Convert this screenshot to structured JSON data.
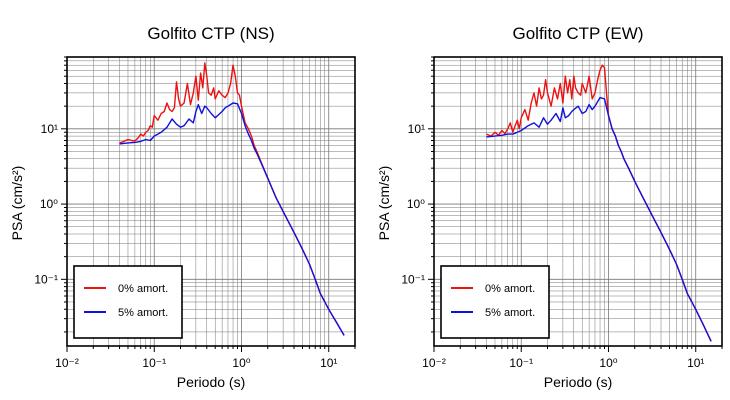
{
  "colors": {
    "zero_damping": "#ee1111",
    "five_damping": "#1111dd",
    "frame": "#000000",
    "grid": "#777777"
  },
  "chart_data": [
    {
      "type": "line",
      "title": "Golfito CTP (NS)",
      "xlabel": "Periodo (s)",
      "ylabel": "PSA (cm/s²)",
      "xscale": "log",
      "yscale": "log",
      "xlim": [
        0.01,
        20
      ],
      "ylim": [
        0.013,
        90
      ],
      "xtick_labels": [
        "10⁻²",
        "10⁻¹",
        "10⁰",
        "10¹"
      ],
      "ytick_labels": [
        "10⁻¹",
        "10⁰",
        "10¹"
      ],
      "grid": true,
      "legend_position": "lower-left",
      "series": [
        {
          "name": "0% amort.",
          "color": "#ee1111",
          "x": [
            0.04,
            0.045,
            0.05,
            0.055,
            0.06,
            0.065,
            0.07,
            0.075,
            0.08,
            0.085,
            0.09,
            0.095,
            0.1,
            0.11,
            0.12,
            0.13,
            0.14,
            0.15,
            0.16,
            0.17,
            0.18,
            0.19,
            0.2,
            0.22,
            0.24,
            0.26,
            0.28,
            0.3,
            0.32,
            0.34,
            0.36,
            0.38,
            0.4,
            0.42,
            0.45,
            0.48,
            0.5,
            0.55,
            0.6,
            0.65,
            0.7,
            0.75,
            0.8,
            0.85,
            0.9,
            0.95,
            1.0,
            1.1,
            1.2,
            1.3,
            1.4,
            1.5,
            1.7,
            2.0,
            2.5,
            3.0,
            4.0,
            5.0,
            6.0,
            7.0,
            8.0,
            10.0,
            12.0,
            15.0
          ],
          "y": [
            6.5,
            6.8,
            7.2,
            7.0,
            6.9,
            7.5,
            8.5,
            8.0,
            9.0,
            9.5,
            11.0,
            10.5,
            15.0,
            13.0,
            16.0,
            17.0,
            22.0,
            18.0,
            17.0,
            19.0,
            42.0,
            25.0,
            20.0,
            22.0,
            40.0,
            21.0,
            30.0,
            50.0,
            24.0,
            55.0,
            35.0,
            75.0,
            50.0,
            30.0,
            28.0,
            35.0,
            25.0,
            32.0,
            28.0,
            26.0,
            30.0,
            40.0,
            70.0,
            50.0,
            30.0,
            28.0,
            20.0,
            12.0,
            10.0,
            8.0,
            6.0,
            5.0,
            3.5,
            2.2,
            1.2,
            0.8,
            0.42,
            0.25,
            0.16,
            0.1,
            0.065,
            0.04,
            0.028,
            0.018
          ]
        },
        {
          "name": "5% amort.",
          "color": "#1111dd",
          "x": [
            0.04,
            0.05,
            0.06,
            0.07,
            0.08,
            0.09,
            0.1,
            0.12,
            0.14,
            0.16,
            0.18,
            0.2,
            0.22,
            0.25,
            0.28,
            0.3,
            0.32,
            0.35,
            0.38,
            0.4,
            0.45,
            0.5,
            0.55,
            0.6,
            0.65,
            0.7,
            0.8,
            0.9,
            1.0,
            1.1,
            1.2,
            1.3,
            1.4,
            1.5,
            1.7,
            2.0,
            2.5,
            3.0,
            4.0,
            5.0,
            6.0,
            7.0,
            8.0,
            10.0,
            12.0,
            15.0
          ],
          "y": [
            6.3,
            6.5,
            6.6,
            6.8,
            7.2,
            7.0,
            8.0,
            9.0,
            10.5,
            13.5,
            11.5,
            10.5,
            11.0,
            13.5,
            12.0,
            17.0,
            21.0,
            16.0,
            20.0,
            19.0,
            16.0,
            14.0,
            15.5,
            17.0,
            19.0,
            20.0,
            22.0,
            21.5,
            16.0,
            11.0,
            8.5,
            7.0,
            5.5,
            4.7,
            3.4,
            2.2,
            1.2,
            0.8,
            0.42,
            0.25,
            0.16,
            0.1,
            0.065,
            0.04,
            0.028,
            0.018
          ]
        }
      ]
    },
    {
      "type": "line",
      "title": "Golfito CTP (EW)",
      "xlabel": "Periodo (s)",
      "ylabel": "PSA (cm/s²)",
      "xscale": "log",
      "yscale": "log",
      "xlim": [
        0.01,
        20
      ],
      "ylim": [
        0.013,
        90
      ],
      "xtick_labels": [
        "10⁻²",
        "10⁻¹",
        "10⁰",
        "10¹"
      ],
      "ytick_labels": [
        "10⁻¹",
        "10⁰",
        "10¹"
      ],
      "grid": true,
      "legend_position": "lower-left",
      "series": [
        {
          "name": "0% amort.",
          "color": "#ee1111",
          "x": [
            0.04,
            0.045,
            0.05,
            0.055,
            0.06,
            0.065,
            0.07,
            0.075,
            0.08,
            0.085,
            0.09,
            0.095,
            0.1,
            0.11,
            0.12,
            0.13,
            0.14,
            0.15,
            0.16,
            0.17,
            0.18,
            0.19,
            0.2,
            0.22,
            0.24,
            0.26,
            0.28,
            0.3,
            0.32,
            0.34,
            0.36,
            0.38,
            0.4,
            0.42,
            0.45,
            0.48,
            0.5,
            0.55,
            0.6,
            0.65,
            0.7,
            0.75,
            0.8,
            0.85,
            0.9,
            0.95,
            1.0,
            1.1,
            1.2,
            1.3,
            1.4,
            1.5,
            1.7,
            2.0,
            2.5,
            3.0,
            4.0,
            5.0,
            6.0,
            7.0,
            8.0,
            10.0,
            12.0,
            15.0
          ],
          "y": [
            8.5,
            8.0,
            9.0,
            8.2,
            9.5,
            8.6,
            10.0,
            12.0,
            9.0,
            11.0,
            13.0,
            10.0,
            14.0,
            18.0,
            13.0,
            22.0,
            30.0,
            20.0,
            35.0,
            25.0,
            28.0,
            45.0,
            30.0,
            20.0,
            35.0,
            25.0,
            40.0,
            22.0,
            50.0,
            30.0,
            45.0,
            25.0,
            50.0,
            35.0,
            30.0,
            28.0,
            40.0,
            30.0,
            50.0,
            25.0,
            30.0,
            45.0,
            60.0,
            70.0,
            65.0,
            30.0,
            15.0,
            10.0,
            8.0,
            6.0,
            5.0,
            4.0,
            3.0,
            2.0,
            1.2,
            0.8,
            0.42,
            0.25,
            0.16,
            0.1,
            0.065,
            0.04,
            0.026,
            0.015
          ]
        },
        {
          "name": "5% amort.",
          "color": "#1111dd",
          "x": [
            0.04,
            0.05,
            0.06,
            0.07,
            0.08,
            0.09,
            0.1,
            0.12,
            0.14,
            0.16,
            0.18,
            0.2,
            0.22,
            0.25,
            0.28,
            0.3,
            0.32,
            0.35,
            0.38,
            0.4,
            0.45,
            0.5,
            0.55,
            0.6,
            0.65,
            0.7,
            0.8,
            0.9,
            1.0,
            1.1,
            1.2,
            1.3,
            1.4,
            1.5,
            1.7,
            2.0,
            2.5,
            3.0,
            4.0,
            5.0,
            6.0,
            7.0,
            8.0,
            10.0,
            12.0,
            15.0
          ],
          "y": [
            7.8,
            8.0,
            8.2,
            8.5,
            8.5,
            9.0,
            9.5,
            11.0,
            12.0,
            10.5,
            14.0,
            11.5,
            13.0,
            16.0,
            12.5,
            19.0,
            14.0,
            15.0,
            17.0,
            18.0,
            20.0,
            16.0,
            17.0,
            21.0,
            18.0,
            20.0,
            26.0,
            25.0,
            15.0,
            10.0,
            8.0,
            6.0,
            5.0,
            4.0,
            3.0,
            2.0,
            1.2,
            0.8,
            0.42,
            0.25,
            0.16,
            0.1,
            0.065,
            0.04,
            0.026,
            0.015
          ]
        }
      ]
    }
  ]
}
